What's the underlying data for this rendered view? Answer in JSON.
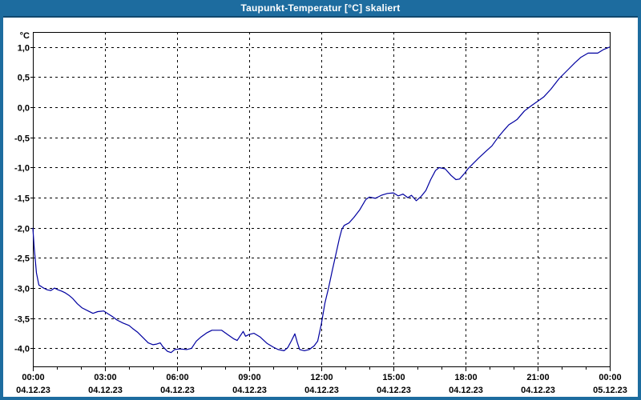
{
  "window": {
    "title": "Taupunkt-Temperatur [°C] skaliert"
  },
  "colors": {
    "titlebar_bg": "#1d6c9f",
    "titlebar_border": "#11486e",
    "frame": "#1d6c9f",
    "title_text": "#ffffff",
    "plot_bg": "#ffffff",
    "grid": "#000000",
    "axis": "#000000",
    "tick_label": "#000000",
    "line": "#0000a0"
  },
  "chart_data": {
    "type": "line",
    "title": "Taupunkt-Temperatur [°C] skaliert",
    "unit_label": "°C",
    "xlabel": "",
    "ylabel": "°C",
    "grid": "dashed",
    "legend": "none",
    "xlim": [
      0,
      24
    ],
    "ylim": [
      -4.3,
      1.25
    ],
    "x_minor_step_hours": 1,
    "x_major_ticks": [
      {
        "hour": 0,
        "time": "00:00",
        "date": "04.12.23"
      },
      {
        "hour": 3,
        "time": "03:00",
        "date": "04.12.23"
      },
      {
        "hour": 6,
        "time": "06:00",
        "date": "04.12.23"
      },
      {
        "hour": 9,
        "time": "09:00",
        "date": "04.12.23"
      },
      {
        "hour": 12,
        "time": "12:00",
        "date": "04.12.23"
      },
      {
        "hour": 15,
        "time": "15:00",
        "date": "04.12.23"
      },
      {
        "hour": 18,
        "time": "18:00",
        "date": "04.12.23"
      },
      {
        "hour": 21,
        "time": "21:00",
        "date": "04.12.23"
      },
      {
        "hour": 24,
        "time": "00:00",
        "date": "05.12.23"
      }
    ],
    "y_ticks": [
      {
        "value": 1.0,
        "label": "1,0"
      },
      {
        "value": 0.5,
        "label": "0,5"
      },
      {
        "value": 0.0,
        "label": "0,0"
      },
      {
        "value": -0.5,
        "label": "-0,5"
      },
      {
        "value": -1.0,
        "label": "-1,0"
      },
      {
        "value": -1.5,
        "label": "-1,5"
      },
      {
        "value": -2.0,
        "label": "-2,0"
      },
      {
        "value": -2.5,
        "label": "-2,5"
      },
      {
        "value": -3.0,
        "label": "-3,0"
      },
      {
        "value": -3.5,
        "label": "-3,5"
      },
      {
        "value": -4.0,
        "label": "-4,0"
      }
    ],
    "series": [
      {
        "name": "Taupunkt-Temperatur",
        "color": "#0000a0",
        "points": [
          [
            0.0,
            -2.0
          ],
          [
            0.05,
            -2.3
          ],
          [
            0.15,
            -2.75
          ],
          [
            0.25,
            -2.95
          ],
          [
            0.45,
            -3.0
          ],
          [
            0.6,
            -3.03
          ],
          [
            0.75,
            -3.04
          ],
          [
            0.9,
            -3.0
          ],
          [
            1.05,
            -3.03
          ],
          [
            1.2,
            -3.05
          ],
          [
            1.35,
            -3.08
          ],
          [
            1.5,
            -3.12
          ],
          [
            1.65,
            -3.17
          ],
          [
            1.85,
            -3.26
          ],
          [
            2.05,
            -3.33
          ],
          [
            2.3,
            -3.38
          ],
          [
            2.5,
            -3.42
          ],
          [
            2.7,
            -3.39
          ],
          [
            2.95,
            -3.38
          ],
          [
            3.1,
            -3.42
          ],
          [
            3.3,
            -3.47
          ],
          [
            3.5,
            -3.53
          ],
          [
            3.75,
            -3.58
          ],
          [
            4.0,
            -3.62
          ],
          [
            4.15,
            -3.67
          ],
          [
            4.35,
            -3.73
          ],
          [
            4.6,
            -3.83
          ],
          [
            4.8,
            -3.91
          ],
          [
            5.0,
            -3.94
          ],
          [
            5.15,
            -3.93
          ],
          [
            5.3,
            -3.91
          ],
          [
            5.4,
            -3.97
          ],
          [
            5.6,
            -4.05
          ],
          [
            5.75,
            -4.07
          ],
          [
            5.9,
            -4.02
          ],
          [
            6.1,
            -4.01
          ],
          [
            6.4,
            -4.02
          ],
          [
            6.6,
            -4.0
          ],
          [
            6.8,
            -3.88
          ],
          [
            7.0,
            -3.81
          ],
          [
            7.25,
            -3.74
          ],
          [
            7.45,
            -3.7
          ],
          [
            7.85,
            -3.7
          ],
          [
            8.1,
            -3.77
          ],
          [
            8.35,
            -3.84
          ],
          [
            8.5,
            -3.87
          ],
          [
            8.65,
            -3.78
          ],
          [
            8.75,
            -3.72
          ],
          [
            8.85,
            -3.8
          ],
          [
            9.0,
            -3.77
          ],
          [
            9.2,
            -3.75
          ],
          [
            9.45,
            -3.81
          ],
          [
            9.75,
            -3.92
          ],
          [
            10.0,
            -3.98
          ],
          [
            10.2,
            -4.02
          ],
          [
            10.45,
            -4.04
          ],
          [
            10.6,
            -3.99
          ],
          [
            10.75,
            -3.88
          ],
          [
            10.9,
            -3.76
          ],
          [
            11.0,
            -3.9
          ],
          [
            11.1,
            -4.02
          ],
          [
            11.3,
            -4.04
          ],
          [
            11.5,
            -4.02
          ],
          [
            11.7,
            -3.96
          ],
          [
            11.85,
            -3.88
          ],
          [
            12.0,
            -3.6
          ],
          [
            12.15,
            -3.25
          ],
          [
            12.3,
            -3.0
          ],
          [
            12.45,
            -2.72
          ],
          [
            12.6,
            -2.45
          ],
          [
            12.75,
            -2.18
          ],
          [
            12.85,
            -2.03
          ],
          [
            12.95,
            -1.96
          ],
          [
            13.15,
            -1.92
          ],
          [
            13.35,
            -1.83
          ],
          [
            13.6,
            -1.7
          ],
          [
            13.85,
            -1.53
          ],
          [
            14.0,
            -1.49
          ],
          [
            14.25,
            -1.51
          ],
          [
            14.5,
            -1.46
          ],
          [
            14.75,
            -1.43
          ],
          [
            15.0,
            -1.42
          ],
          [
            15.2,
            -1.47
          ],
          [
            15.4,
            -1.44
          ],
          [
            15.6,
            -1.5
          ],
          [
            15.75,
            -1.46
          ],
          [
            15.95,
            -1.55
          ],
          [
            16.15,
            -1.48
          ],
          [
            16.35,
            -1.38
          ],
          [
            16.55,
            -1.2
          ],
          [
            16.75,
            -1.05
          ],
          [
            16.9,
            -1.0
          ],
          [
            17.15,
            -1.02
          ],
          [
            17.4,
            -1.13
          ],
          [
            17.6,
            -1.2
          ],
          [
            17.75,
            -1.19
          ],
          [
            17.95,
            -1.1
          ],
          [
            18.1,
            -1.02
          ],
          [
            18.3,
            -0.94
          ],
          [
            18.55,
            -0.84
          ],
          [
            18.85,
            -0.73
          ],
          [
            19.1,
            -0.64
          ],
          [
            19.35,
            -0.5
          ],
          [
            19.6,
            -0.38
          ],
          [
            19.8,
            -0.29
          ],
          [
            20.0,
            -0.24
          ],
          [
            20.15,
            -0.2
          ],
          [
            20.45,
            -0.06
          ],
          [
            20.75,
            0.03
          ],
          [
            21.0,
            0.1
          ],
          [
            21.25,
            0.17
          ],
          [
            21.55,
            0.3
          ],
          [
            21.9,
            0.48
          ],
          [
            22.2,
            0.6
          ],
          [
            22.55,
            0.74
          ],
          [
            22.8,
            0.83
          ],
          [
            23.1,
            0.9
          ],
          [
            23.5,
            0.9
          ],
          [
            23.75,
            0.96
          ],
          [
            24.0,
            1.0
          ]
        ]
      }
    ]
  }
}
